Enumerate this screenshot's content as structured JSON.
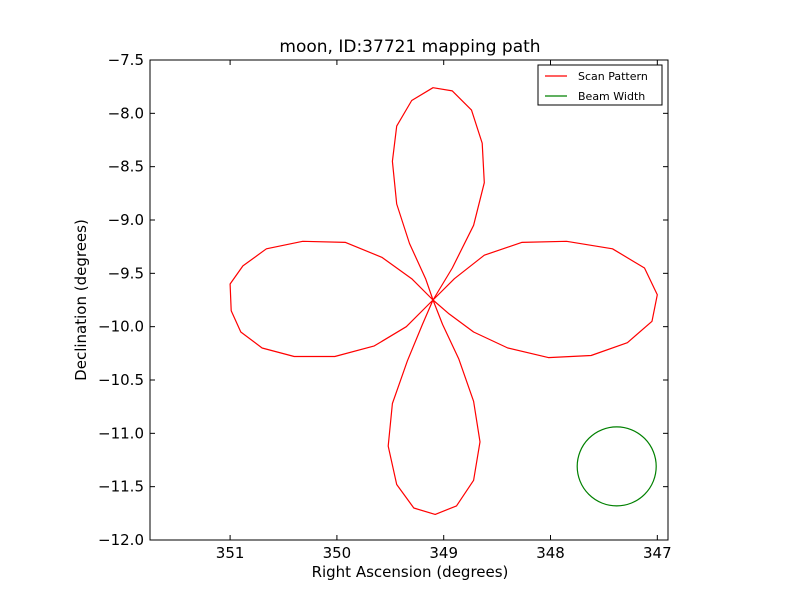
{
  "chart_data": {
    "type": "line",
    "title": "moon, ID:37721 mapping path",
    "xlabel": "Right Ascension (degrees)",
    "ylabel": "Declination (degrees)",
    "xlim": [
      351.75,
      346.9
    ],
    "ylim": [
      -12.0,
      -7.5
    ],
    "x_inverted": true,
    "xticks": [
      351,
      350,
      349,
      348,
      347
    ],
    "xtick_labels": [
      "351",
      "350",
      "349",
      "348",
      "347"
    ],
    "yticks": [
      -7.5,
      -8.0,
      -8.5,
      -9.0,
      -9.5,
      -10.0,
      -10.5,
      -11.0,
      -11.5,
      -12.0
    ],
    "ytick_labels": [
      "−7.5",
      "−8.0",
      "−8.5",
      "−9.0",
      "−9.5",
      "−10.0",
      "−10.5",
      "−11.0",
      "−11.5",
      "−12.0"
    ],
    "grid": false,
    "legend_position": "top-right",
    "series": [
      {
        "name": "Scan Pattern",
        "color": "#ff0000",
        "center": [
          349.1,
          -9.75
        ],
        "lobe_reach_deg": 2.0,
        "points": [
          [
            349.1,
            -9.75
          ],
          [
            348.9,
            -9.55
          ],
          [
            348.62,
            -9.33
          ],
          [
            348.27,
            -9.21
          ],
          [
            347.85,
            -9.2
          ],
          [
            347.42,
            -9.27
          ],
          [
            347.12,
            -9.45
          ],
          [
            347.0,
            -9.7
          ],
          [
            347.05,
            -9.95
          ],
          [
            347.28,
            -10.15
          ],
          [
            347.62,
            -10.27
          ],
          [
            348.02,
            -10.29
          ],
          [
            348.4,
            -10.2
          ],
          [
            348.72,
            -10.05
          ],
          [
            348.95,
            -9.88
          ],
          [
            349.1,
            -9.75
          ],
          [
            349.17,
            -9.55
          ],
          [
            349.32,
            -9.22
          ],
          [
            349.44,
            -8.85
          ],
          [
            349.48,
            -8.45
          ],
          [
            349.44,
            -8.12
          ],
          [
            349.3,
            -7.88
          ],
          [
            349.1,
            -7.76
          ],
          [
            348.92,
            -7.79
          ],
          [
            348.74,
            -7.97
          ],
          [
            348.64,
            -8.28
          ],
          [
            348.62,
            -8.65
          ],
          [
            348.72,
            -9.05
          ],
          [
            348.92,
            -9.45
          ],
          [
            349.1,
            -9.75
          ],
          [
            349.3,
            -9.55
          ],
          [
            349.58,
            -9.35
          ],
          [
            349.92,
            -9.21
          ],
          [
            350.32,
            -9.2
          ],
          [
            350.66,
            -9.27
          ],
          [
            350.88,
            -9.43
          ],
          [
            351.0,
            -9.6
          ],
          [
            350.99,
            -9.85
          ],
          [
            350.9,
            -10.05
          ],
          [
            350.7,
            -10.2
          ],
          [
            350.4,
            -10.28
          ],
          [
            350.02,
            -10.28
          ],
          [
            349.65,
            -10.18
          ],
          [
            349.35,
            -10.0
          ],
          [
            349.1,
            -9.75
          ],
          [
            349.01,
            -9.98
          ],
          [
            348.86,
            -10.3
          ],
          [
            348.72,
            -10.7
          ],
          [
            348.66,
            -11.08
          ],
          [
            348.72,
            -11.44
          ],
          [
            348.88,
            -11.68
          ],
          [
            349.08,
            -11.76
          ],
          [
            349.28,
            -11.7
          ],
          [
            349.44,
            -11.48
          ],
          [
            349.52,
            -11.12
          ],
          [
            349.48,
            -10.72
          ],
          [
            349.34,
            -10.32
          ],
          [
            349.2,
            -9.98
          ],
          [
            349.1,
            -9.75
          ]
        ]
      },
      {
        "name": "Beam Width",
        "color": "#008000",
        "center": [
          347.38,
          -11.31
        ],
        "radius_deg": 0.37
      }
    ]
  }
}
